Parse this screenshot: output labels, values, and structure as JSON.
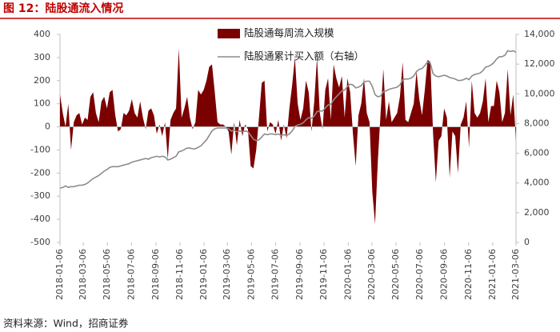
{
  "chart_data": {
    "type": "combo",
    "title": "图 12：陆股通流入情况",
    "source": "资料来源：Wind，招商证券",
    "x": [
      "2018-01-06",
      "2018-01-13",
      "2018-01-20",
      "2018-01-27",
      "2018-02-03",
      "2018-02-10",
      "2018-02-17",
      "2018-02-24",
      "2018-03-03",
      "2018-03-10",
      "2018-03-17",
      "2018-03-24",
      "2018-03-31",
      "2018-04-07",
      "2018-04-14",
      "2018-04-21",
      "2018-04-28",
      "2018-05-05",
      "2018-05-12",
      "2018-05-19",
      "2018-05-26",
      "2018-06-02",
      "2018-06-09",
      "2018-06-16",
      "2018-06-23",
      "2018-06-30",
      "2018-07-07",
      "2018-07-14",
      "2018-07-21",
      "2018-07-28",
      "2018-08-04",
      "2018-08-11",
      "2018-08-18",
      "2018-08-25",
      "2018-09-01",
      "2018-09-08",
      "2018-09-15",
      "2018-09-22",
      "2018-09-29",
      "2018-10-06",
      "2018-10-13",
      "2018-10-20",
      "2018-10-27",
      "2018-11-03",
      "2018-11-10",
      "2018-11-17",
      "2018-11-24",
      "2018-12-01",
      "2018-12-08",
      "2018-12-15",
      "2018-12-22",
      "2018-12-29",
      "2019-01-05",
      "2019-01-12",
      "2019-01-19",
      "2019-01-26",
      "2019-02-02",
      "2019-02-09",
      "2019-02-16",
      "2019-02-23",
      "2019-03-02",
      "2019-03-09",
      "2019-03-16",
      "2019-03-23",
      "2019-03-30",
      "2019-04-06",
      "2019-04-13",
      "2019-04-20",
      "2019-04-27",
      "2019-05-04",
      "2019-05-11",
      "2019-05-18",
      "2019-05-25",
      "2019-06-01",
      "2019-06-08",
      "2019-06-15",
      "2019-06-22",
      "2019-06-29",
      "2019-07-06",
      "2019-07-13",
      "2019-07-20",
      "2019-07-27",
      "2019-08-03",
      "2019-08-10",
      "2019-08-17",
      "2019-08-24",
      "2019-08-31",
      "2019-09-07",
      "2019-09-14",
      "2019-09-21",
      "2019-09-28",
      "2019-10-05",
      "2019-10-12",
      "2019-10-19",
      "2019-10-26",
      "2019-11-02",
      "2019-11-09",
      "2019-11-16",
      "2019-11-23",
      "2019-11-30",
      "2019-12-07",
      "2019-12-14",
      "2019-12-21",
      "2019-12-28",
      "2020-01-04",
      "2020-01-11",
      "2020-01-18",
      "2020-01-25",
      "2020-02-01",
      "2020-02-08",
      "2020-02-15",
      "2020-02-22",
      "2020-02-29",
      "2020-03-07",
      "2020-03-14",
      "2020-03-21",
      "2020-03-28",
      "2020-04-04",
      "2020-04-11",
      "2020-04-18",
      "2020-04-25",
      "2020-05-02",
      "2020-05-09",
      "2020-05-16",
      "2020-05-23",
      "2020-05-30",
      "2020-06-06",
      "2020-06-13",
      "2020-06-20",
      "2020-06-27",
      "2020-07-04",
      "2020-07-11",
      "2020-07-18",
      "2020-07-25",
      "2020-08-01",
      "2020-08-08",
      "2020-08-15",
      "2020-08-22",
      "2020-08-29",
      "2020-09-05",
      "2020-09-12",
      "2020-09-19",
      "2020-09-26",
      "2020-10-03",
      "2020-10-10",
      "2020-10-17",
      "2020-10-24",
      "2020-10-31",
      "2020-11-07",
      "2020-11-14",
      "2020-11-21",
      "2020-11-28",
      "2020-12-05",
      "2020-12-12",
      "2020-12-19",
      "2020-12-26",
      "2021-01-02",
      "2021-01-09",
      "2021-01-16",
      "2021-01-23",
      "2021-01-30",
      "2021-02-06",
      "2021-02-13",
      "2021-02-20",
      "2021-02-27",
      "2021-03-06"
    ],
    "series": [
      {
        "name": "陆股通每周流入规模",
        "type": "area",
        "color": "#7b0000",
        "values": [
          140,
          60,
          0,
          100,
          -100,
          20,
          50,
          60,
          10,
          40,
          30,
          130,
          150,
          60,
          20,
          110,
          130,
          80,
          150,
          160,
          50,
          -20,
          -10,
          60,
          50,
          70,
          120,
          60,
          40,
          110,
          40,
          -10,
          70,
          80,
          50,
          -30,
          10,
          -40,
          20,
          -140,
          30,
          60,
          80,
          340,
          40,
          80,
          130,
          40,
          -10,
          20,
          160,
          140,
          160,
          200,
          260,
          270,
          150,
          20,
          10,
          10,
          0,
          -20,
          -120,
          20,
          -80,
          30,
          -40,
          10,
          -10,
          -170,
          -180,
          -100,
          40,
          190,
          200,
          -20,
          20,
          10,
          -30,
          30,
          -60,
          10,
          -50,
          80,
          180,
          300,
          100,
          30,
          80,
          200,
          150,
          -20,
          110,
          300,
          60,
          -10,
          160,
          210,
          30,
          270,
          210,
          170,
          220,
          40,
          210,
          150,
          -30,
          -170,
          50,
          100,
          210,
          60,
          20,
          -280,
          -420,
          -150,
          60,
          250,
          30,
          110,
          20,
          40,
          60,
          130,
          280,
          30,
          20,
          60,
          100,
          240,
          120,
          50,
          160,
          290,
          280,
          -30,
          -240,
          -60,
          -40,
          80,
          40,
          -220,
          -20,
          -40,
          -200,
          10,
          40,
          110,
          -90,
          200,
          60,
          40,
          60,
          110,
          210,
          20,
          90,
          90,
          200,
          150,
          20,
          60,
          250,
          50,
          140,
          -60
        ]
      },
      {
        "name": "陆股通累计买入额（右轴）",
        "type": "line",
        "axis": "y2",
        "color": "#8c8c8c",
        "values": [
          3650,
          3700,
          3800,
          3700,
          3750,
          3750,
          3800,
          3850,
          3850,
          3900,
          4000,
          4150,
          4300,
          4400,
          4500,
          4650,
          4800,
          4900,
          5050,
          5100,
          5100,
          5100,
          5150,
          5200,
          5250,
          5300,
          5400,
          5450,
          5500,
          5550,
          5600,
          5650,
          5600,
          5700,
          5750,
          5800,
          5750,
          5800,
          5750,
          5550,
          5600,
          5700,
          5800,
          6100,
          6150,
          6250,
          6350,
          6350,
          6300,
          6300,
          6400,
          6500,
          6700,
          6900,
          7200,
          7500,
          7650,
          7700,
          7700,
          7700,
          7700,
          7650,
          7500,
          7550,
          7450,
          7500,
          7450,
          7500,
          7450,
          7200,
          6950,
          6850,
          6900,
          7100,
          7300,
          7250,
          7300,
          7300,
          7250,
          7300,
          7200,
          7250,
          7200,
          7300,
          7500,
          7800,
          7900,
          7950,
          8050,
          8250,
          8400,
          8350,
          8500,
          8800,
          8850,
          8850,
          9050,
          9250,
          9300,
          9600,
          9800,
          10000,
          10200,
          10250,
          10500,
          10650,
          10600,
          10400,
          10450,
          10550,
          10800,
          10850,
          10850,
          10500,
          9950,
          9800,
          9850,
          10150,
          10200,
          10300,
          10350,
          10400,
          10450,
          10600,
          10950,
          11000,
          11000,
          11050,
          11200,
          11500,
          11650,
          11700,
          11900,
          12150,
          12050,
          11350,
          11200,
          11150,
          11200,
          11250,
          11200,
          11100,
          11050,
          11000,
          10900,
          10900,
          10950,
          11050,
          10950,
          11200,
          11300,
          11350,
          11400,
          11550,
          11800,
          11850,
          11950,
          12100,
          12350,
          12500,
          12500,
          12600,
          12900,
          12850,
          12900,
          12800
        ]
      }
    ],
    "xlim": [
      "2018-01-06",
      "2021-03-06"
    ],
    "xticks": [
      "2018-01-06",
      "2018-03-06",
      "2018-05-06",
      "2018-07-06",
      "2018-09-06",
      "2018-11-06",
      "2019-01-06",
      "2019-03-06",
      "2019-05-06",
      "2019-07-06",
      "2019-09-06",
      "2019-11-06",
      "2020-01-06",
      "2020-03-06",
      "2020-05-06",
      "2020-07-06",
      "2020-09-06",
      "2020-11-06",
      "2021-01-06",
      "2021-03-06"
    ],
    "ylim": [
      -500,
      400
    ],
    "yticks": [
      -500,
      -400,
      -300,
      -200,
      -100,
      0,
      100,
      200,
      300,
      400
    ],
    "y2lim": [
      0,
      14000
    ],
    "y2ticks": [
      0,
      {
        "value": 2000,
        "label": "2,000"
      },
      {
        "value": 4000,
        "label": "4,000"
      },
      {
        "value": 6000,
        "label": "6,000"
      },
      {
        "value": 8000,
        "label": "8,000"
      },
      {
        "value": 10000,
        "label": "10,000"
      },
      {
        "value": 12000,
        "label": "12,000"
      },
      {
        "value": 14000,
        "label": "14,000"
      }
    ],
    "grid": false,
    "legend": "top"
  }
}
